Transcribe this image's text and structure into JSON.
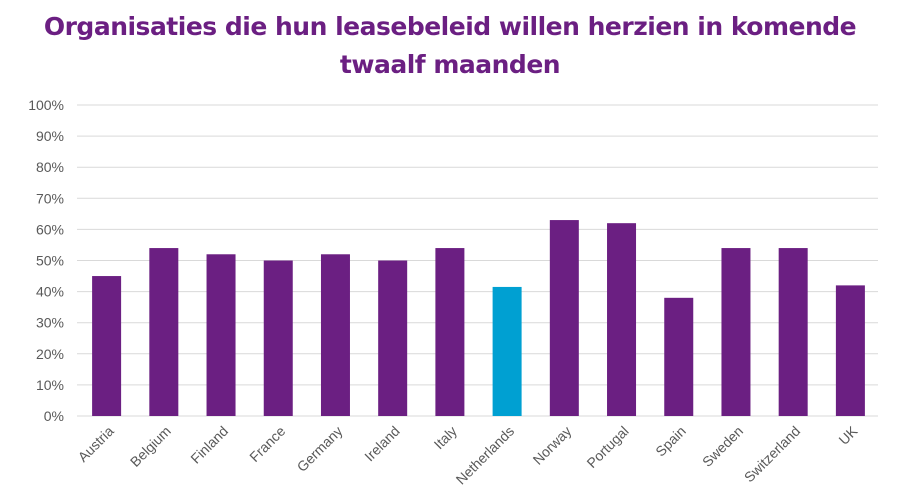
{
  "chart_data": {
    "type": "bar",
    "title_line1": "Organisaties die hun leasebeleid willen herzien in komende",
    "title_line2": "twaalf maanden",
    "categories": [
      "Austria",
      "Belgium",
      "Finland",
      "France",
      "Germany",
      "Ireland",
      "Italy",
      "Netherlands",
      "Norway",
      "Portugal",
      "Spain",
      "Sweden",
      "Switzerland",
      "UK"
    ],
    "values": [
      45,
      54,
      52,
      50,
      52,
      50,
      54,
      41.5,
      63,
      62,
      38,
      54,
      54,
      42
    ],
    "highlight": "Netherlands",
    "ylim": [
      0,
      100
    ],
    "yticks": [
      "0%",
      "10%",
      "20%",
      "30%",
      "40%",
      "50%",
      "60%",
      "70%",
      "80%",
      "90%",
      "100%"
    ],
    "grid": true,
    "colors": {
      "bar": "#6b1f82",
      "highlight": "#00a0d2",
      "title": "#6b1f82",
      "grid": "#d9d9d9"
    }
  }
}
